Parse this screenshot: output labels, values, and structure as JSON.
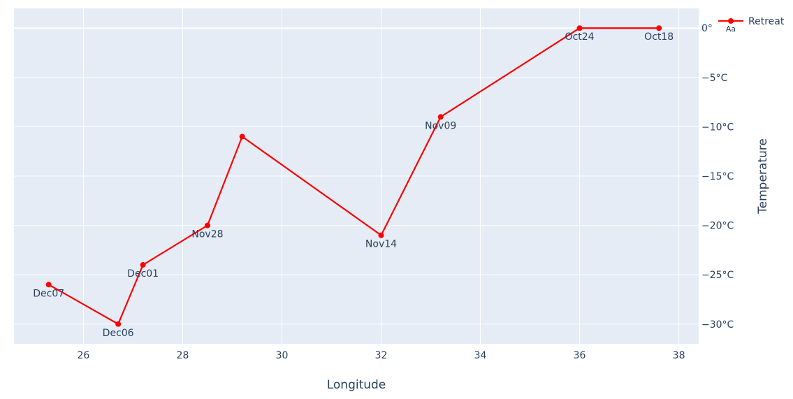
{
  "chart_data": {
    "type": "line",
    "title": "",
    "xlabel": "Longitude",
    "ylabel": "Temperature",
    "xlim": [
      24.6,
      38.4
    ],
    "ylim": [
      -32,
      2
    ],
    "x_ticks": [
      26,
      28,
      30,
      32,
      34,
      36,
      38
    ],
    "y_ticks": [
      0,
      -5,
      -10,
      -15,
      -20,
      -25,
      -30
    ],
    "y_tick_labels": [
      "0°",
      "−5°C",
      "−10°C",
      "−15°C",
      "−20°C",
      "−25°C",
      "−30°C"
    ],
    "grid": true,
    "legend": {
      "position": "top-right",
      "entries": [
        "Retreat"
      ],
      "hover_label": "Aa"
    },
    "series": [
      {
        "name": "Retreat",
        "color": "#ff0000",
        "x": [
          37.6,
          36.0,
          33.2,
          32.0,
          29.2,
          28.5,
          27.2,
          26.7,
          25.3
        ],
        "y": [
          0,
          0,
          -9,
          -21,
          -11,
          -20,
          -24,
          -30,
          -26
        ],
        "labels": [
          "Oct18",
          "Oct24",
          "Nov09",
          "Nov14",
          "",
          "Nov28",
          "Dec01",
          "Dec06",
          "Dec07"
        ]
      }
    ]
  },
  "colors": {
    "plot_bg": "#e5ecf6",
    "grid": "#ffffff",
    "text": "#2a3f5f",
    "series": "#ff0000"
  }
}
